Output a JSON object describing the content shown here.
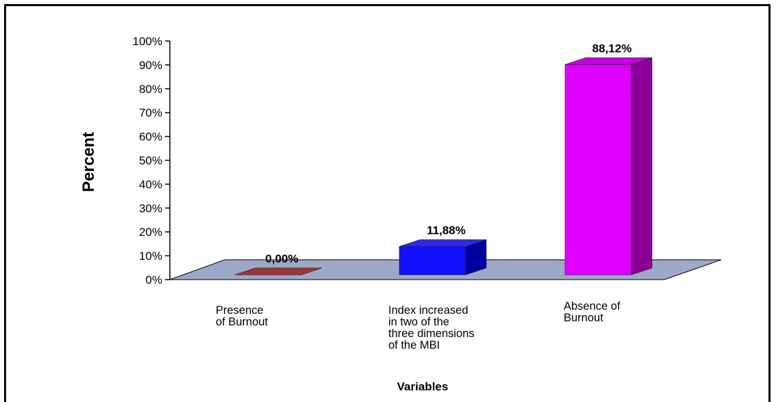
{
  "chart_data": {
    "type": "bar",
    "title": "",
    "xlabel": "Variables",
    "ylabel": "Percent",
    "ylim": [
      0,
      100
    ],
    "y_ticks": [
      "0%",
      "10%",
      "20%",
      "30%",
      "40%",
      "50%",
      "60%",
      "70%",
      "80%",
      "90%",
      "100%"
    ],
    "categories": [
      {
        "lines": [
          "Presence",
          "of Burnout"
        ]
      },
      {
        "lines": [
          "Index increased",
          "in two of the",
          "three dimensions",
          "of the MBI"
        ]
      },
      {
        "lines": [
          "Absence of",
          "Burnout"
        ]
      }
    ],
    "values": [
      0.0,
      11.88,
      88.12
    ],
    "value_labels": [
      "0,00%",
      "11,88%",
      "88,12%"
    ],
    "bar_colors": [
      "#b03030",
      "#1010ff",
      "#e000ff"
    ],
    "bar_side_colors": [
      "#7a1f1f",
      "#0000a0",
      "#8a0096"
    ],
    "bar_top_colors": [
      "#9a3838",
      "#2a2ae8",
      "#c200dc"
    ],
    "floor_color": "#9ea8c8",
    "grid": false,
    "legend": "none",
    "style": "3d"
  }
}
